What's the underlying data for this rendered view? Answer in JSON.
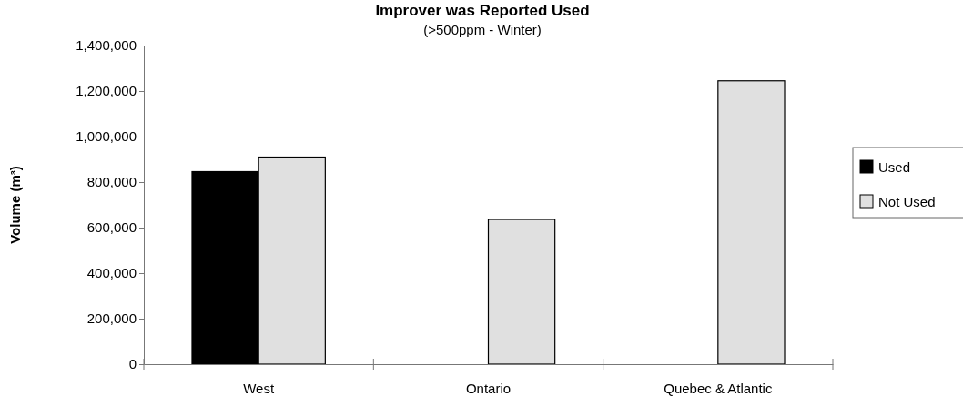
{
  "chart_data": {
    "type": "bar",
    "title": "Improver was Reported Used",
    "subtitle": "(>500ppm - Winter)",
    "ylabel": "Volume (m³)",
    "categories": [
      "West",
      "Ontario",
      "Quebec & Atlantic"
    ],
    "series": [
      {
        "name": "Used",
        "color": "#000000",
        "values": [
          846000,
          null,
          null
        ]
      },
      {
        "name": "Not Used",
        "color": "#e0e0e0",
        "values": [
          910000,
          636000,
          1245000
        ]
      }
    ],
    "ylim": [
      0,
      1400000
    ],
    "yticks": [
      {
        "value": 0,
        "label": "0"
      },
      {
        "value": 200000,
        "label": "200,000"
      },
      {
        "value": 400000,
        "label": "400,000"
      },
      {
        "value": 600000,
        "label": "600,000"
      },
      {
        "value": 800000,
        "label": "800,000"
      },
      {
        "value": 1000000,
        "label": "1,000,000"
      },
      {
        "value": 1200000,
        "label": "1,200,000"
      },
      {
        "value": 1400000,
        "label": "1,400,000"
      }
    ],
    "grid": false,
    "legend": "right"
  }
}
